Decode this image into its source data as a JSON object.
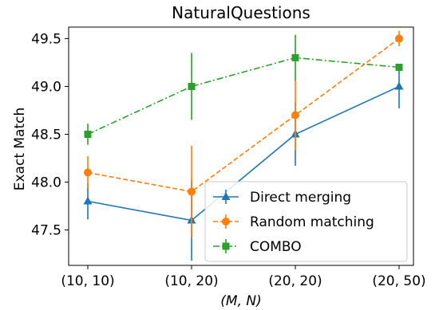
{
  "chart_data": {
    "type": "line",
    "title": "NaturalQuestions",
    "xlabel": "(M, N)",
    "ylabel": "Exact Match",
    "categories": [
      "(10, 10)",
      "(10, 20)",
      "(20, 20)",
      "(20, 50)"
    ],
    "ylim": [
      47.13,
      49.62
    ],
    "yticks": [
      47.5,
      48.0,
      48.5,
      49.0,
      49.5
    ],
    "ytick_labels": [
      "47.5",
      "48.0",
      "48.5",
      "49.0",
      "49.5"
    ],
    "grid": false,
    "legend_position": "lower-right",
    "series": [
      {
        "name": "Direct merging",
        "color": "#1f77b4",
        "linestyle": "solid",
        "marker": "triangle-up",
        "values": [
          47.8,
          47.6,
          48.5,
          49.0
        ],
        "errors": [
          0.19,
          0.42,
          0.33,
          0.23
        ]
      },
      {
        "name": "Random matching",
        "color": "#ff7f0e",
        "linestyle": "dashed",
        "marker": "circle",
        "values": [
          48.1,
          47.9,
          48.7,
          49.5
        ],
        "errors": [
          0.17,
          0.48,
          0.37,
          0.08
        ]
      },
      {
        "name": "COMBO",
        "color": "#2ca02c",
        "linestyle": "dashdot",
        "marker": "square",
        "values": [
          48.5,
          49.0,
          49.3,
          49.2
        ],
        "errors": [
          0.11,
          0.35,
          0.24,
          0.0
        ]
      }
    ]
  }
}
